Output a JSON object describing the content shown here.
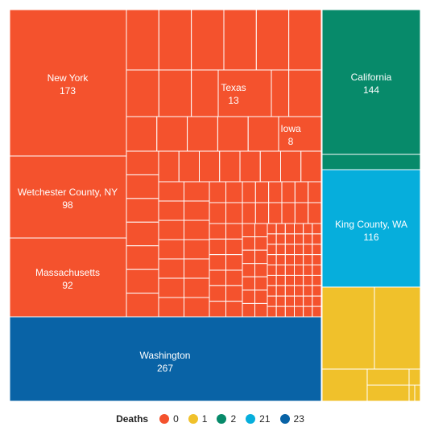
{
  "chart_data": {
    "type": "treemap",
    "legend": {
      "title": "Deaths",
      "placement": "bottom",
      "entries": [
        {
          "label": "0",
          "color": "#f4522d"
        },
        {
          "label": "1",
          "color": "#f0c12b"
        },
        {
          "label": "2",
          "color": "#078a6a"
        },
        {
          "label": "21",
          "color": "#06aedc"
        },
        {
          "label": "23",
          "color": "#0963a6"
        }
      ]
    },
    "groups": [
      {
        "deaths": "0",
        "color": "#f4522d",
        "labeled_items": [
          {
            "name": "New York",
            "value": 173
          },
          {
            "name": "Wetchester County, NY",
            "value": 98
          },
          {
            "name": "Massachusetts",
            "value": 92
          },
          {
            "name": "Texas",
            "value": 13
          },
          {
            "name": "Iowa",
            "value": 8
          }
        ]
      },
      {
        "deaths": "23",
        "color": "#0963a6",
        "labeled_items": [
          {
            "name": "Washington",
            "value": 267
          }
        ]
      },
      {
        "deaths": "2",
        "color": "#078a6a",
        "labeled_items": [
          {
            "name": "California",
            "value": 144
          }
        ]
      },
      {
        "deaths": "21",
        "color": "#06aedc",
        "labeled_items": [
          {
            "name": "King County, WA",
            "value": 116
          }
        ]
      },
      {
        "deaths": "1",
        "color": "#f0c12b",
        "labeled_items": []
      }
    ]
  }
}
